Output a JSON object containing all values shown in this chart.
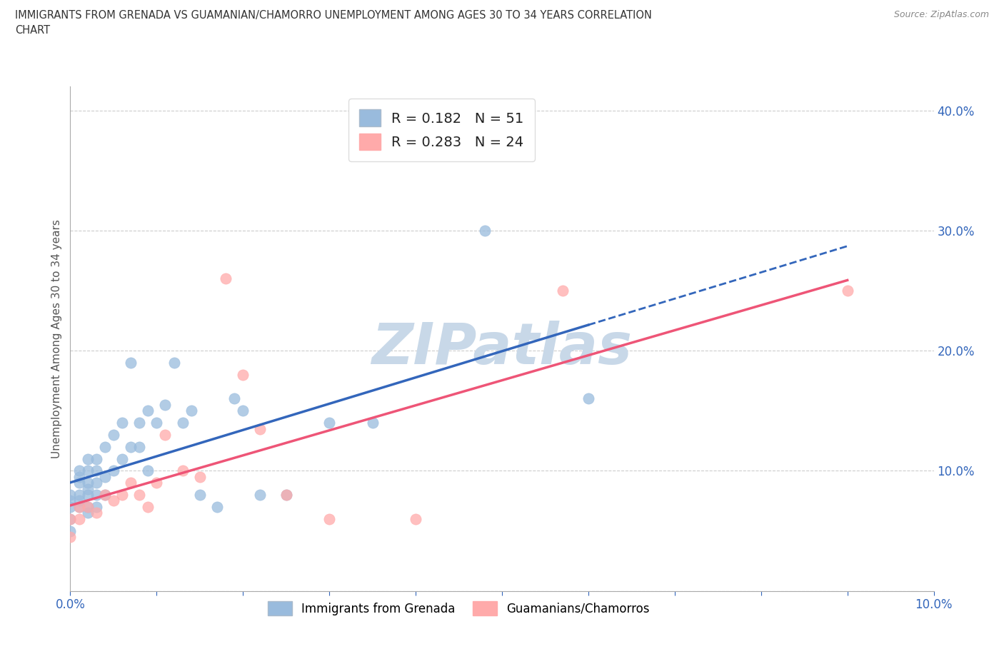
{
  "title": "IMMIGRANTS FROM GRENADA VS GUAMANIAN/CHAMORRO UNEMPLOYMENT AMONG AGES 30 TO 34 YEARS CORRELATION\nCHART",
  "source_text": "Source: ZipAtlas.com",
  "ylabel": "Unemployment Among Ages 30 to 34 years",
  "xlim": [
    0.0,
    0.1
  ],
  "ylim": [
    0.0,
    0.42
  ],
  "xticks": [
    0.0,
    0.01,
    0.02,
    0.03,
    0.04,
    0.05,
    0.06,
    0.07,
    0.08,
    0.09,
    0.1
  ],
  "yticks": [
    0.0,
    0.1,
    0.2,
    0.3,
    0.4
  ],
  "ytick_labels": [
    "",
    "10.0%",
    "20.0%",
    "30.0%",
    "40.0%"
  ],
  "xtick_labels": [
    "0.0%",
    "",
    "",
    "",
    "",
    "",
    "",
    "",
    "",
    "",
    "10.0%"
  ],
  "r1": 0.182,
  "n1": 51,
  "r2": 0.283,
  "n2": 24,
  "color_grenada": "#99BBDD",
  "color_guamanian": "#FFAAAA",
  "trendline_grenada_color": "#3366BB",
  "trendline_guamanian_color": "#EE5577",
  "watermark_color": "#C8D8E8",
  "background_color": "#FFFFFF",
  "grenada_x": [
    0.0,
    0.0,
    0.0,
    0.0,
    0.0,
    0.001,
    0.001,
    0.001,
    0.001,
    0.001,
    0.001,
    0.002,
    0.002,
    0.002,
    0.002,
    0.002,
    0.002,
    0.002,
    0.003,
    0.003,
    0.003,
    0.003,
    0.003,
    0.004,
    0.004,
    0.004,
    0.005,
    0.005,
    0.006,
    0.006,
    0.007,
    0.007,
    0.008,
    0.008,
    0.009,
    0.009,
    0.01,
    0.011,
    0.012,
    0.013,
    0.014,
    0.015,
    0.017,
    0.019,
    0.02,
    0.022,
    0.025,
    0.03,
    0.035,
    0.048,
    0.06
  ],
  "grenada_y": [
    0.05,
    0.06,
    0.07,
    0.075,
    0.08,
    0.07,
    0.075,
    0.08,
    0.09,
    0.095,
    0.1,
    0.065,
    0.07,
    0.08,
    0.085,
    0.09,
    0.1,
    0.11,
    0.07,
    0.08,
    0.09,
    0.1,
    0.11,
    0.08,
    0.095,
    0.12,
    0.1,
    0.13,
    0.11,
    0.14,
    0.12,
    0.19,
    0.12,
    0.14,
    0.1,
    0.15,
    0.14,
    0.155,
    0.19,
    0.14,
    0.15,
    0.08,
    0.07,
    0.16,
    0.15,
    0.08,
    0.08,
    0.14,
    0.14,
    0.3,
    0.16
  ],
  "guamanian_x": [
    0.0,
    0.0,
    0.001,
    0.001,
    0.002,
    0.003,
    0.004,
    0.005,
    0.006,
    0.007,
    0.008,
    0.009,
    0.01,
    0.011,
    0.013,
    0.015,
    0.018,
    0.02,
    0.022,
    0.025,
    0.03,
    0.04,
    0.057,
    0.09
  ],
  "guamanian_y": [
    0.045,
    0.06,
    0.06,
    0.07,
    0.07,
    0.065,
    0.08,
    0.075,
    0.08,
    0.09,
    0.08,
    0.07,
    0.09,
    0.13,
    0.1,
    0.095,
    0.26,
    0.18,
    0.135,
    0.08,
    0.06,
    0.06,
    0.25,
    0.25
  ],
  "grenada_trendline_xmin": 0.0,
  "grenada_trendline_xmax": 0.06,
  "guamanian_trendline_xmin": 0.0,
  "guamanian_trendline_xmax": 0.09,
  "legend1_label": "R = 0.182   N = 51",
  "legend2_label": "R = 0.283   N = 24",
  "bottom_label1": "Immigrants from Grenada",
  "bottom_label2": "Guamanians/Chamorros"
}
